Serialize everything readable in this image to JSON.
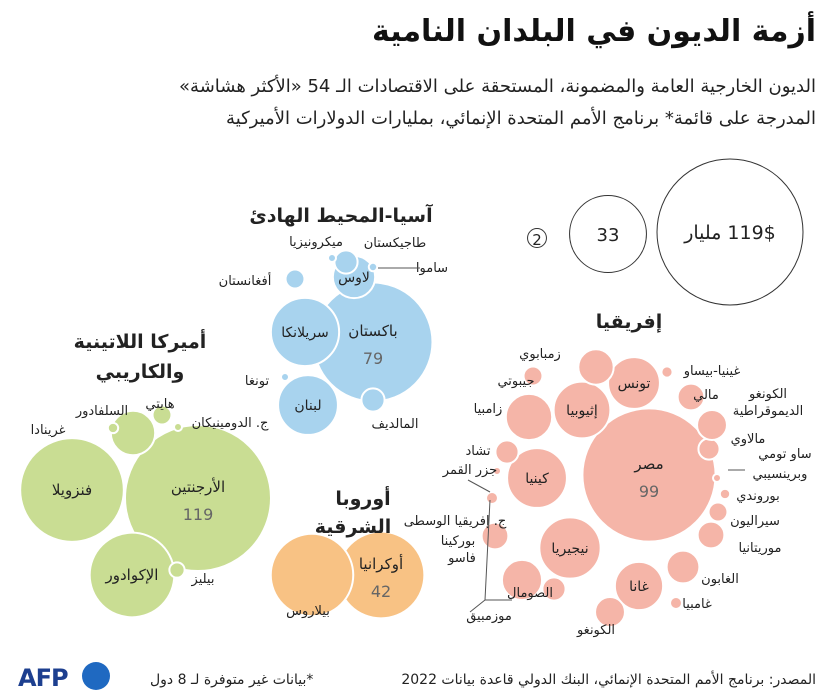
{
  "title": "أزمة الديون في البلدان النامية",
  "subtitle_line1": "الديون الخارجية العامة والمضمونة، المستحقة على الاقتصادات الـ 54 «الأكثر هشاشة»",
  "subtitle_line2": "المدرجة على قائمة* برنامج الأمم المتحدة الإنمائي، بمليارات الدولارات الأميركية",
  "source": "المصدر: برنامج الأمم المتحدة الإنمائي، البنك الدولي قاعدة بيانات 2022",
  "footnote": "*بيانات غير متوفرة لـ 8 دول",
  "colors": {
    "africa": "#f5b5a8",
    "asia": "#a8d3ee",
    "latam": "#c9dd93",
    "europe": "#f8c284"
  },
  "chart_data": {
    "type": "bubble",
    "unit": "مليار دولار",
    "legend": [
      {
        "label": "119$ مليار",
        "value": 119
      },
      {
        "label": "33",
        "value": 33
      },
      {
        "label": "2",
        "value": 2
      }
    ],
    "groups": [
      {
        "name": "إفريقيا",
        "color": "#f5b5a8",
        "countries": [
          {
            "name": "مصر",
            "value": 99,
            "value_label": "99"
          },
          {
            "name": "نيجيريا",
            "value": 21
          },
          {
            "name": "كينيا",
            "value": 20
          },
          {
            "name": "إثيوبيا",
            "value": 18
          },
          {
            "name": "تونس",
            "value": 15
          },
          {
            "name": "غانا",
            "value": 13
          },
          {
            "name": "زمبابوي",
            "value": 7
          },
          {
            "name": "جيبوتي",
            "value": 2
          },
          {
            "name": "زامبيا",
            "value": 12
          },
          {
            "name": "تشاد",
            "value": 3
          },
          {
            "name": "جزر القمر",
            "value": 0.3
          },
          {
            "name": "ج. إفريقيا الوسطى",
            "value": 0.8
          },
          {
            "name": "بوركينا فاسو",
            "value": 4
          },
          {
            "name": "موزمبيق",
            "value": 9
          },
          {
            "name": "الصومال",
            "value": 3
          },
          {
            "name": "الكونغو",
            "value": 5
          },
          {
            "name": "غامبيا",
            "value": 0.8
          },
          {
            "name": "الغابون",
            "value": 6
          },
          {
            "name": "موريتانيا",
            "value": 4
          },
          {
            "name": "سيراليون",
            "value": 2
          },
          {
            "name": "بوروندي",
            "value": 0.6
          },
          {
            "name": "ساو تومي وبرينسيبي",
            "value": 0.3
          },
          {
            "name": "مالاوي",
            "value": 2.5
          },
          {
            "name": "الكونغو الديموقراطية",
            "value": 5
          },
          {
            "name": "مالي",
            "value": 4
          },
          {
            "name": "غينيا-بيساو",
            "value": 0.7
          }
        ]
      },
      {
        "name": "آسيا-المحيط الهادئ",
        "color": "#a8d3ee",
        "countries": [
          {
            "name": "باكستان",
            "value": 79,
            "value_label": "79"
          },
          {
            "name": "سريلانكا",
            "value": 26
          },
          {
            "name": "لبنان",
            "value": 20
          },
          {
            "name": "لاوس",
            "value": 10
          },
          {
            "name": "أفغانستان",
            "value": 2
          },
          {
            "name": "طاجيكستان",
            "value": 3
          },
          {
            "name": "ميكرونيزيا",
            "value": 0.1
          },
          {
            "name": "ساموا",
            "value": 0.4
          },
          {
            "name": "تونغا",
            "value": 0.2
          },
          {
            "name": "المالديف",
            "value": 3
          }
        ]
      },
      {
        "name": "أميركا اللاتينية والكاريبي",
        "color": "#c9dd93",
        "countries": [
          {
            "name": "الأرجنتين",
            "value": 119,
            "value_label": "119"
          },
          {
            "name": "فنزويلا",
            "value": 60
          },
          {
            "name": "الإكوادور",
            "value": 40
          },
          {
            "name": "السلفادور",
            "value": 11
          },
          {
            "name": "هايتي",
            "value": 2
          },
          {
            "name": "غرينادا",
            "value": 0.6
          },
          {
            "name": "ج. الدومينيكان",
            "value": 0.3
          },
          {
            "name": "بيليز",
            "value": 1.3
          }
        ]
      },
      {
        "name": "أوروبا الشرقية",
        "color": "#f8c284",
        "countries": [
          {
            "name": "أوكرانيا",
            "value": 42,
            "value_label": "42"
          },
          {
            "name": "بيلاروس",
            "value": 38
          }
        ]
      }
    ]
  }
}
